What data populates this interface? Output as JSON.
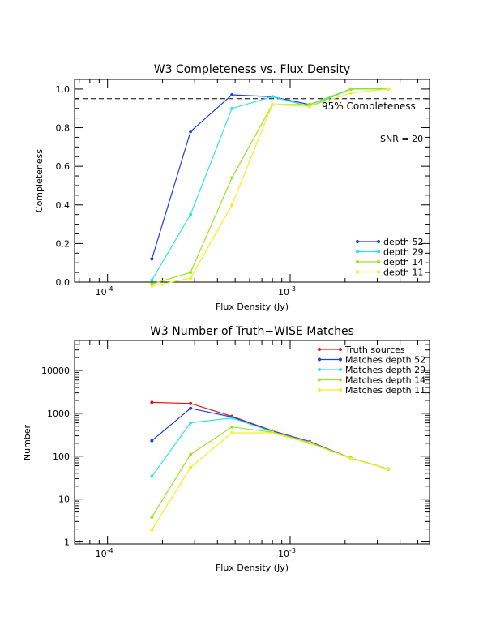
{
  "chart_data": [
    {
      "type": "line",
      "title": "W3 Completeness vs. Flux Density",
      "xlabel": "Flux Density (Jy)",
      "ylabel": "Completeness",
      "xscale": "log",
      "yscale": "linear",
      "xlim": [
        6.6e-05,
        0.0058
      ],
      "ylim": [
        0.0,
        1.05
      ],
      "x_ticks": [
        {
          "value": 0.0001,
          "base": "10",
          "exp": "-4"
        },
        {
          "value": 0.001,
          "base": "10",
          "exp": "-3"
        }
      ],
      "y_ticks": [
        "0.0",
        "0.2",
        "0.4",
        "0.6",
        "0.8",
        "1.0"
      ],
      "x": [
        0.000175,
        0.000285,
        0.00048,
        0.0008,
        0.00128,
        0.00215,
        0.00345
      ],
      "series": [
        {
          "name": "depth 52",
          "color": "#1f3fd8",
          "values": [
            0.12,
            0.78,
            0.97,
            0.96,
            0.92,
            1.0,
            1.0
          ]
        },
        {
          "name": "depth 29",
          "color": "#2fe5e5",
          "values": [
            0.01,
            0.35,
            0.9,
            0.96,
            0.91,
            1.0,
            1.0
          ]
        },
        {
          "name": "depth 14",
          "color": "#99e61e",
          "values": [
            -0.01,
            0.05,
            0.54,
            0.92,
            0.92,
            1.0,
            1.0
          ]
        },
        {
          "name": "depth 11",
          "color": "#f4f01a",
          "values": [
            -0.02,
            0.02,
            0.4,
            0.92,
            0.91,
            0.98,
            1.0
          ]
        }
      ],
      "reference_lines": [
        {
          "orientation": "horizontal",
          "value": 0.95,
          "style": "dashed",
          "label": "95% Completeness"
        },
        {
          "orientation": "vertical",
          "value": 0.0026,
          "style": "dashed",
          "label": "SNR = 20"
        }
      ],
      "legend": "bottom-right"
    },
    {
      "type": "line",
      "title": "W3 Number of Truth−WISE Matches",
      "xlabel": "Flux Density (Jy)",
      "ylabel": "Number",
      "xscale": "log",
      "yscale": "log",
      "xlim": [
        6.6e-05,
        0.0058
      ],
      "ylim": [
        0.9,
        50000
      ],
      "x_ticks": [
        {
          "value": 0.0001,
          "base": "10",
          "exp": "-4"
        },
        {
          "value": 0.001,
          "base": "10",
          "exp": "-3"
        }
      ],
      "y_ticks": [
        {
          "value": 1,
          "label": "1"
        },
        {
          "value": 10,
          "label": "10"
        },
        {
          "value": 100,
          "label": "100"
        },
        {
          "value": 1000,
          "label": "1000"
        },
        {
          "value": 10000,
          "label": "10000"
        }
      ],
      "x": [
        0.000175,
        0.000285,
        0.00048,
        0.0008,
        0.00128,
        0.00215,
        0.00345
      ],
      "series": [
        {
          "name": "Truth sources",
          "color": "#e01a1a",
          "values": [
            1800,
            1700,
            850,
            390,
            220,
            90,
            50
          ]
        },
        {
          "name": "Matches depth 52",
          "color": "#1f3fd8",
          "values": [
            230,
            1300,
            820,
            380,
            210,
            90,
            50
          ]
        },
        {
          "name": "Matches depth 29",
          "color": "#2fe5e5",
          "values": [
            34,
            600,
            780,
            370,
            210,
            90,
            50
          ]
        },
        {
          "name": "Matches depth 14",
          "color": "#99e61e",
          "values": [
            3.8,
            110,
            480,
            360,
            200,
            90,
            50
          ]
        },
        {
          "name": "Matches depth 11",
          "color": "#f4f01a",
          "values": [
            1.9,
            55,
            350,
            350,
            200,
            88,
            50
          ]
        }
      ],
      "legend": "top-right"
    }
  ]
}
